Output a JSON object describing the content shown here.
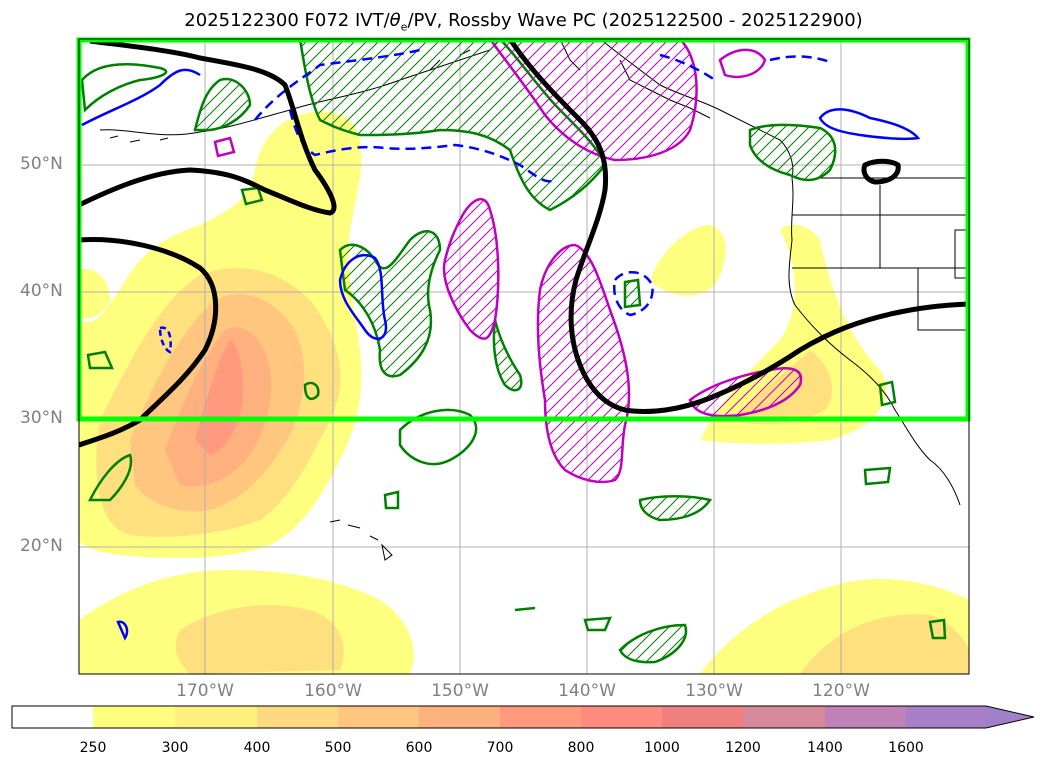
{
  "title_prefix": "2025122300 F072 IVT/",
  "title_theta": "θ",
  "title_theta_sub": "e",
  "title_suffix": "/PV, Rossby Wave PC (2025122500 - 2025122900)",
  "lat_labels": [
    "50°N",
    "40°N",
    "30°N",
    "20°N"
  ],
  "lon_labels": [
    "170°W",
    "160°W",
    "150°W",
    "140°W",
    "130°W",
    "120°W"
  ],
  "colorbar": {
    "ticks": [
      "250",
      "300",
      "400",
      "500",
      "600",
      "700",
      "800",
      "1000",
      "1200",
      "1400",
      "1600"
    ],
    "colors": [
      "#ffff7f",
      "#fff07f",
      "#ffd97f",
      "#ffc67f",
      "#ffb07f",
      "#ff9a7f",
      "#ff8a7f",
      "#f08080",
      "#d78a9c",
      "#c080b8",
      "#a880c8"
    ],
    "extend_color": "#a080c8",
    "under_color": "#ffffff"
  },
  "colors": {
    "box": "#00ff00",
    "positive_pv": "#008000",
    "negative_pv": "#0000ff",
    "magenta": "#c000c0",
    "rossby_wave": "#000000"
  }
}
